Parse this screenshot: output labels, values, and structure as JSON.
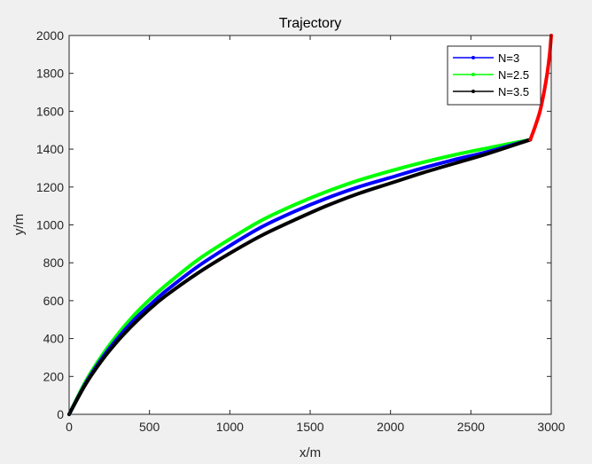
{
  "chart_data": {
    "type": "line",
    "title": "Trajectory",
    "xlabel": "x/m",
    "ylabel": "y/m",
    "xlim": [
      0,
      3000
    ],
    "ylim": [
      0,
      2000
    ],
    "xticks": [
      0,
      500,
      1000,
      1500,
      2000,
      2500,
      3000
    ],
    "yticks": [
      0,
      200,
      400,
      600,
      800,
      1000,
      1200,
      1400,
      1600,
      1800,
      2000
    ],
    "grid": false,
    "legend_position": "top-right",
    "series": [
      {
        "name": "N=3",
        "color": "#0000ff",
        "x": [
          0,
          100,
          200,
          300,
          400,
          500,
          600,
          800,
          1000,
          1200,
          1400,
          1600,
          1800,
          2000,
          2200,
          2400,
          2600,
          2870
        ],
        "y": [
          0,
          160,
          290,
          400,
          495,
          575,
          650,
          780,
          890,
          990,
          1070,
          1140,
          1200,
          1250,
          1300,
          1345,
          1385,
          1450
        ]
      },
      {
        "name": "N=2.5",
        "color": "#00ff00",
        "x": [
          0,
          100,
          200,
          300,
          400,
          500,
          600,
          800,
          1000,
          1200,
          1400,
          1600,
          1800,
          2000,
          2200,
          2400,
          2600,
          2870
        ],
        "y": [
          0,
          170,
          305,
          420,
          520,
          605,
          680,
          815,
          925,
          1025,
          1105,
          1175,
          1235,
          1285,
          1330,
          1370,
          1405,
          1450
        ]
      },
      {
        "name": "N=3.5",
        "color": "#000000",
        "x": [
          0,
          100,
          200,
          300,
          400,
          500,
          600,
          800,
          1000,
          1200,
          1400,
          1600,
          1800,
          2000,
          2200,
          2400,
          2600,
          2870
        ],
        "y": [
          0,
          155,
          280,
          385,
          475,
          555,
          625,
          745,
          850,
          945,
          1025,
          1100,
          1165,
          1220,
          1275,
          1325,
          1375,
          1450
        ]
      }
    ],
    "unlabeled_series": [
      {
        "color": "#ff0000",
        "x": [
          2870,
          2900,
          2930,
          2955,
          2975,
          2990,
          3000
        ],
        "y": [
          1450,
          1520,
          1600,
          1700,
          1800,
          1900,
          2000
        ]
      }
    ]
  }
}
